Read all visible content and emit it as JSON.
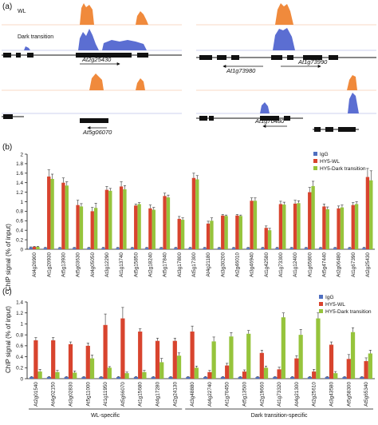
{
  "panel_a": {
    "label": "(a)",
    "track_labels": [
      "WL",
      "Dark transition"
    ],
    "genes": [
      "At2g25430",
      "At1g73980",
      "At1g73990",
      "At5g06070",
      "At1g70480"
    ]
  },
  "colors": {
    "igg": "#4f6fc0",
    "wl": "#d8442e",
    "dark": "#96c43c",
    "wl_track": "#f08a3c",
    "dark_track": "#5b6ed2"
  },
  "chart_data": [
    {
      "type": "bar",
      "panel": "(b)",
      "ylabel": "ChIP signal (% of input)",
      "ylim": [
        0,
        2
      ],
      "yticks": [
        "0",
        "0.2",
        "0.4",
        "0.6",
        "0.8",
        "1",
        "1.2",
        "1.4",
        "1.6",
        "1.8",
        "2"
      ],
      "categories": [
        "At4g26900",
        "At1g20930",
        "At5g13930",
        "At5g03630",
        "At4g05050",
        "At3g12290",
        "At1g13740",
        "At5g15850",
        "At2g18240",
        "At5g17840",
        "At3g17800",
        "At5g17300",
        "At4g21180",
        "At3g30200",
        "At2g46010",
        "At3g46940",
        "At1g42580",
        "At1g73300",
        "At1g12400",
        "At1g65800",
        "At5g47440",
        "At2g06480",
        "At1g67390",
        "At2g25430"
      ],
      "series": [
        {
          "name": "IgG",
          "color": "#4f6fc0",
          "values": [
            0.04,
            0.03,
            0.03,
            0.03,
            0.03,
            0.03,
            0.03,
            0.03,
            0.03,
            0.03,
            0.03,
            0.03,
            0.03,
            0.03,
            0.03,
            0.03,
            0.03,
            0.03,
            0.03,
            0.03,
            0.03,
            0.03,
            0.03,
            0.03
          ],
          "errors": [
            0.01,
            0.01,
            0.01,
            0.01,
            0.01,
            0.01,
            0.01,
            0.01,
            0.01,
            0.01,
            0.01,
            0.01,
            0.01,
            0.01,
            0.01,
            0.01,
            0.01,
            0.01,
            0.01,
            0.01,
            0.01,
            0.01,
            0.01,
            0.01
          ]
        },
        {
          "name": "HY5-WL",
          "color": "#d8442e",
          "values": [
            0.05,
            1.53,
            1.4,
            0.93,
            0.8,
            1.25,
            1.32,
            0.92,
            0.86,
            1.12,
            0.64,
            1.5,
            0.54,
            0.71,
            0.71,
            1.02,
            0.45,
            0.95,
            0.96,
            1.2,
            0.9,
            0.86,
            0.93,
            1.52
          ],
          "errors": [
            0.01,
            0.14,
            0.1,
            0.1,
            0.08,
            0.07,
            0.1,
            0.03,
            0.07,
            0.06,
            0.05,
            0.1,
            0.05,
            0.02,
            0.02,
            0.06,
            0.04,
            0.06,
            0.07,
            0.1,
            0.05,
            0.05,
            0.05,
            0.18
          ]
        },
        {
          "name": "HY5-Dark transition",
          "color": "#96c43c",
          "values": [
            0.05,
            1.48,
            1.34,
            0.9,
            0.87,
            1.23,
            1.26,
            0.95,
            0.83,
            1.09,
            0.62,
            1.47,
            0.6,
            0.7,
            0.7,
            1.02,
            0.4,
            0.94,
            0.97,
            1.33,
            0.84,
            0.88,
            0.95,
            1.45
          ],
          "errors": [
            0.01,
            0.1,
            0.08,
            0.06,
            0.1,
            0.05,
            0.08,
            0.03,
            0.05,
            0.05,
            0.04,
            0.08,
            0.06,
            0.02,
            0.02,
            0.06,
            0.04,
            0.05,
            0.05,
            0.1,
            0.05,
            0.05,
            0.05,
            0.2
          ]
        }
      ]
    },
    {
      "type": "bar",
      "panel": "(c)",
      "ylabel": "ChIP signal (% of input)",
      "ylim": [
        0,
        1.4
      ],
      "yticks": [
        "0",
        "0.2",
        "0.4",
        "0.6",
        "0.8",
        "1",
        "1.2",
        "1.4"
      ],
      "categories": [
        "At2g01540",
        "At4g02150",
        "At3g02830",
        "At5g11000",
        "At1g11950",
        "At5g66070",
        "At1g15680",
        "At4g17280",
        "At2g24130",
        "At3g48880",
        "At4g22740",
        "At1g70450",
        "At5g13500",
        "At2g19660",
        "At1g73320",
        "At4g21300",
        "At2g25610",
        "At3g43580",
        "At5g58300",
        "At5g65340"
      ],
      "series": [
        {
          "name": "IgG",
          "color": "#4f6fc0",
          "values": [
            0.03,
            0.03,
            0.03,
            0.03,
            0.03,
            0.03,
            0.03,
            0.03,
            0.03,
            0.03,
            0.03,
            0.03,
            0.03,
            0.03,
            0.03,
            0.03,
            0.03,
            0.03,
            0.03,
            0.03
          ],
          "errors": [
            0.01,
            0.01,
            0.01,
            0.01,
            0.01,
            0.01,
            0.01,
            0.01,
            0.01,
            0.01,
            0.01,
            0.01,
            0.01,
            0.01,
            0.01,
            0.01,
            0.01,
            0.01,
            0.01,
            0.01
          ]
        },
        {
          "name": "HY5-WL",
          "color": "#d8442e",
          "values": [
            0.7,
            0.7,
            0.63,
            0.6,
            0.98,
            1.1,
            0.86,
            0.69,
            0.69,
            0.86,
            0.12,
            0.24,
            0.13,
            0.47,
            0.17,
            0.37,
            0.13,
            0.62,
            0.36,
            0.32
          ],
          "errors": [
            0.05,
            0.05,
            0.04,
            0.05,
            0.2,
            0.2,
            0.05,
            0.05,
            0.05,
            0.1,
            0.03,
            0.04,
            0.03,
            0.05,
            0.04,
            0.05,
            0.04,
            0.05,
            0.08,
            0.06
          ]
        },
        {
          "name": "HY5-Dark transition",
          "color": "#96c43c",
          "values": [
            0.13,
            0.12,
            0.11,
            0.37,
            0.2,
            0.1,
            0.12,
            0.3,
            0.42,
            0.2,
            0.68,
            0.77,
            0.82,
            0.2,
            1.12,
            0.8,
            1.1,
            0.1,
            0.85,
            0.46
          ],
          "errors": [
            0.04,
            0.03,
            0.03,
            0.06,
            0.02,
            0.02,
            0.03,
            0.07,
            0.05,
            0.03,
            0.08,
            0.07,
            0.06,
            0.03,
            0.08,
            0.1,
            0.1,
            0.03,
            0.08,
            0.06
          ]
        }
      ],
      "groups": [
        {
          "label": "WL-specific",
          "from": 0,
          "to": 8
        },
        {
          "label": "Dark transition-specific",
          "from": 9,
          "to": 19
        }
      ]
    }
  ]
}
